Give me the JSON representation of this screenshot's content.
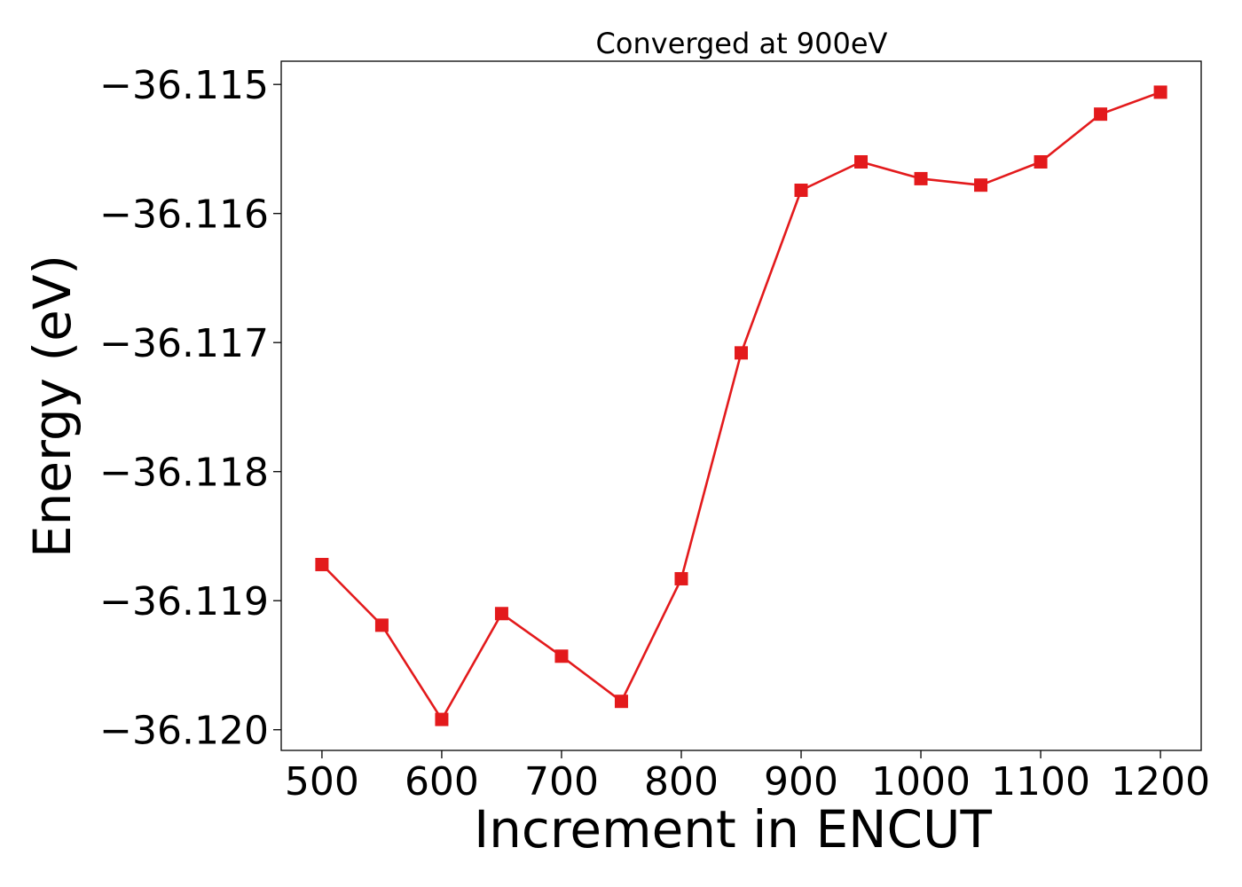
{
  "chart_data": {
    "type": "line",
    "title": "Converged at 900eV",
    "xlabel": "Increment in ENCUT",
    "ylabel": "Energy (eV)",
    "xlim": [
      466,
      1234
    ],
    "ylim": [
      -36.12016,
      -36.11482
    ],
    "x_ticks": [
      500,
      600,
      700,
      800,
      900,
      1000,
      1100,
      1200
    ],
    "x_tick_labels": [
      "500",
      "600",
      "700",
      "800",
      "900",
      "1000",
      "1100",
      "1200"
    ],
    "y_ticks": [
      -36.115,
      -36.116,
      -36.117,
      -36.118,
      -36.119,
      -36.12
    ],
    "y_tick_labels": [
      "−36.115",
      "−36.116",
      "−36.117",
      "−36.118",
      "−36.119",
      "−36.120"
    ],
    "grid": false,
    "legend": "none",
    "series": [
      {
        "color": "#e31a1c",
        "marker": "square",
        "x": [
          500,
          550,
          600,
          650,
          700,
          750,
          800,
          850,
          900,
          950,
          1000,
          1050,
          1100,
          1150,
          1200
        ],
        "y": [
          -36.11872,
          -36.11919,
          -36.11992,
          -36.1191,
          -36.11943,
          -36.11978,
          -36.11883,
          -36.11708,
          -36.11582,
          -36.1156,
          -36.11573,
          -36.11578,
          -36.1156,
          -36.11523,
          -36.11506
        ]
      }
    ]
  }
}
